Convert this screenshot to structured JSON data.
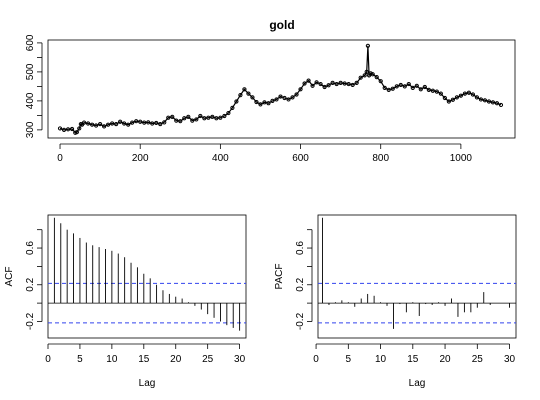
{
  "chart_data": [
    {
      "type": "line",
      "title": "gold",
      "xlabel": "",
      "ylabel": "",
      "xlim": [
        -30,
        1135
      ],
      "ylim": [
        272,
        610
      ],
      "xticks": [
        0,
        200,
        400,
        600,
        800,
        1000
      ],
      "yticks": [
        300,
        400,
        500,
        600
      ],
      "series": [
        {
          "x": [
            0,
            10,
            20,
            30,
            38,
            42,
            48,
            52,
            55,
            60,
            70,
            80,
            90,
            100,
            110,
            120,
            130,
            140,
            150,
            160,
            170,
            180,
            190,
            200,
            210,
            220,
            230,
            240,
            250,
            260,
            270,
            280,
            290,
            300,
            310,
            320,
            330,
            340,
            350,
            360,
            370,
            380,
            390,
            400,
            410,
            420,
            430,
            440,
            450,
            460,
            470,
            480,
            490,
            500,
            510,
            520,
            530,
            540,
            550,
            560,
            570,
            580,
            590,
            600,
            610,
            620,
            630,
            640,
            650,
            660,
            670,
            680,
            690,
            700,
            710,
            720,
            730,
            740,
            750,
            760,
            765,
            768,
            771,
            775,
            780,
            790,
            800,
            810,
            820,
            830,
            840,
            850,
            860,
            870,
            880,
            890,
            900,
            910,
            920,
            930,
            940,
            950,
            960,
            970,
            980,
            990,
            1000,
            1010,
            1020,
            1030,
            1040,
            1050,
            1060,
            1070,
            1080,
            1090,
            1100
          ],
          "y": [
            305,
            300,
            302,
            303,
            290,
            292,
            305,
            320,
            318,
            325,
            322,
            318,
            315,
            320,
            312,
            318,
            322,
            320,
            328,
            322,
            318,
            325,
            330,
            328,
            325,
            326,
            322,
            324,
            320,
            326,
            342,
            345,
            332,
            330,
            340,
            345,
            332,
            336,
            348,
            340,
            342,
            345,
            340,
            342,
            348,
            358,
            376,
            398,
            420,
            440,
            425,
            412,
            396,
            388,
            395,
            392,
            400,
            405,
            415,
            410,
            405,
            412,
            422,
            440,
            460,
            470,
            452,
            464,
            458,
            448,
            454,
            462,
            458,
            462,
            460,
            458,
            455,
            462,
            480,
            488,
            500,
            590,
            488,
            495,
            492,
            482,
            468,
            445,
            438,
            442,
            450,
            455,
            450,
            458,
            445,
            452,
            440,
            448,
            438,
            435,
            432,
            425,
            410,
            398,
            404,
            412,
            418,
            425,
            428,
            422,
            412,
            405,
            402,
            398,
            395,
            392,
            386
          ]
        }
      ]
    },
    {
      "type": "bar",
      "xlabel": "Lag",
      "ylabel": "ACF",
      "xlim": [
        0,
        31
      ],
      "ylim": [
        -0.38,
        0.96
      ],
      "xticks": [
        0,
        5,
        10,
        15,
        20,
        25,
        30
      ],
      "yticks": [
        -0.2,
        0.2,
        0.6
      ],
      "conf_limits": [
        0.215,
        -0.215
      ],
      "categories": [
        1,
        2,
        3,
        4,
        5,
        6,
        7,
        8,
        9,
        10,
        11,
        12,
        13,
        14,
        15,
        16,
        17,
        18,
        19,
        20,
        21,
        22,
        23,
        24,
        25,
        26,
        27,
        28,
        29,
        30
      ],
      "values": [
        0.93,
        0.87,
        0.8,
        0.76,
        0.71,
        0.66,
        0.63,
        0.61,
        0.59,
        0.57,
        0.54,
        0.5,
        0.44,
        0.39,
        0.32,
        0.27,
        0.2,
        0.14,
        0.1,
        0.07,
        0.05,
        0.01,
        -0.03,
        -0.07,
        -0.12,
        -0.16,
        -0.2,
        -0.24,
        -0.27,
        -0.3
      ]
    },
    {
      "type": "bar",
      "xlabel": "Lag",
      "ylabel": "PACF",
      "xlim": [
        0.3,
        31
      ],
      "ylim": [
        -0.38,
        0.96
      ],
      "xticks": [
        0,
        5,
        10,
        15,
        20,
        25,
        30
      ],
      "yticks": [
        -0.2,
        0.2,
        0.6
      ],
      "conf_limits": [
        0.215,
        -0.215
      ],
      "categories": [
        1,
        2,
        3,
        4,
        5,
        6,
        7,
        8,
        9,
        10,
        11,
        12,
        13,
        14,
        15,
        16,
        17,
        18,
        19,
        20,
        21,
        22,
        23,
        24,
        25,
        26,
        27,
        28,
        29,
        30
      ],
      "values": [
        0.93,
        -0.02,
        0.01,
        0.03,
        0.01,
        -0.04,
        0.05,
        0.1,
        0.08,
        0.01,
        -0.03,
        -0.28,
        -0.01,
        -0.1,
        0.01,
        -0.14,
        -0.01,
        -0.02,
        0.01,
        -0.03,
        0.05,
        -0.15,
        -0.1,
        -0.1,
        -0.05,
        0.12,
        -0.02,
        0.0,
        0.0,
        -0.05
      ]
    }
  ]
}
